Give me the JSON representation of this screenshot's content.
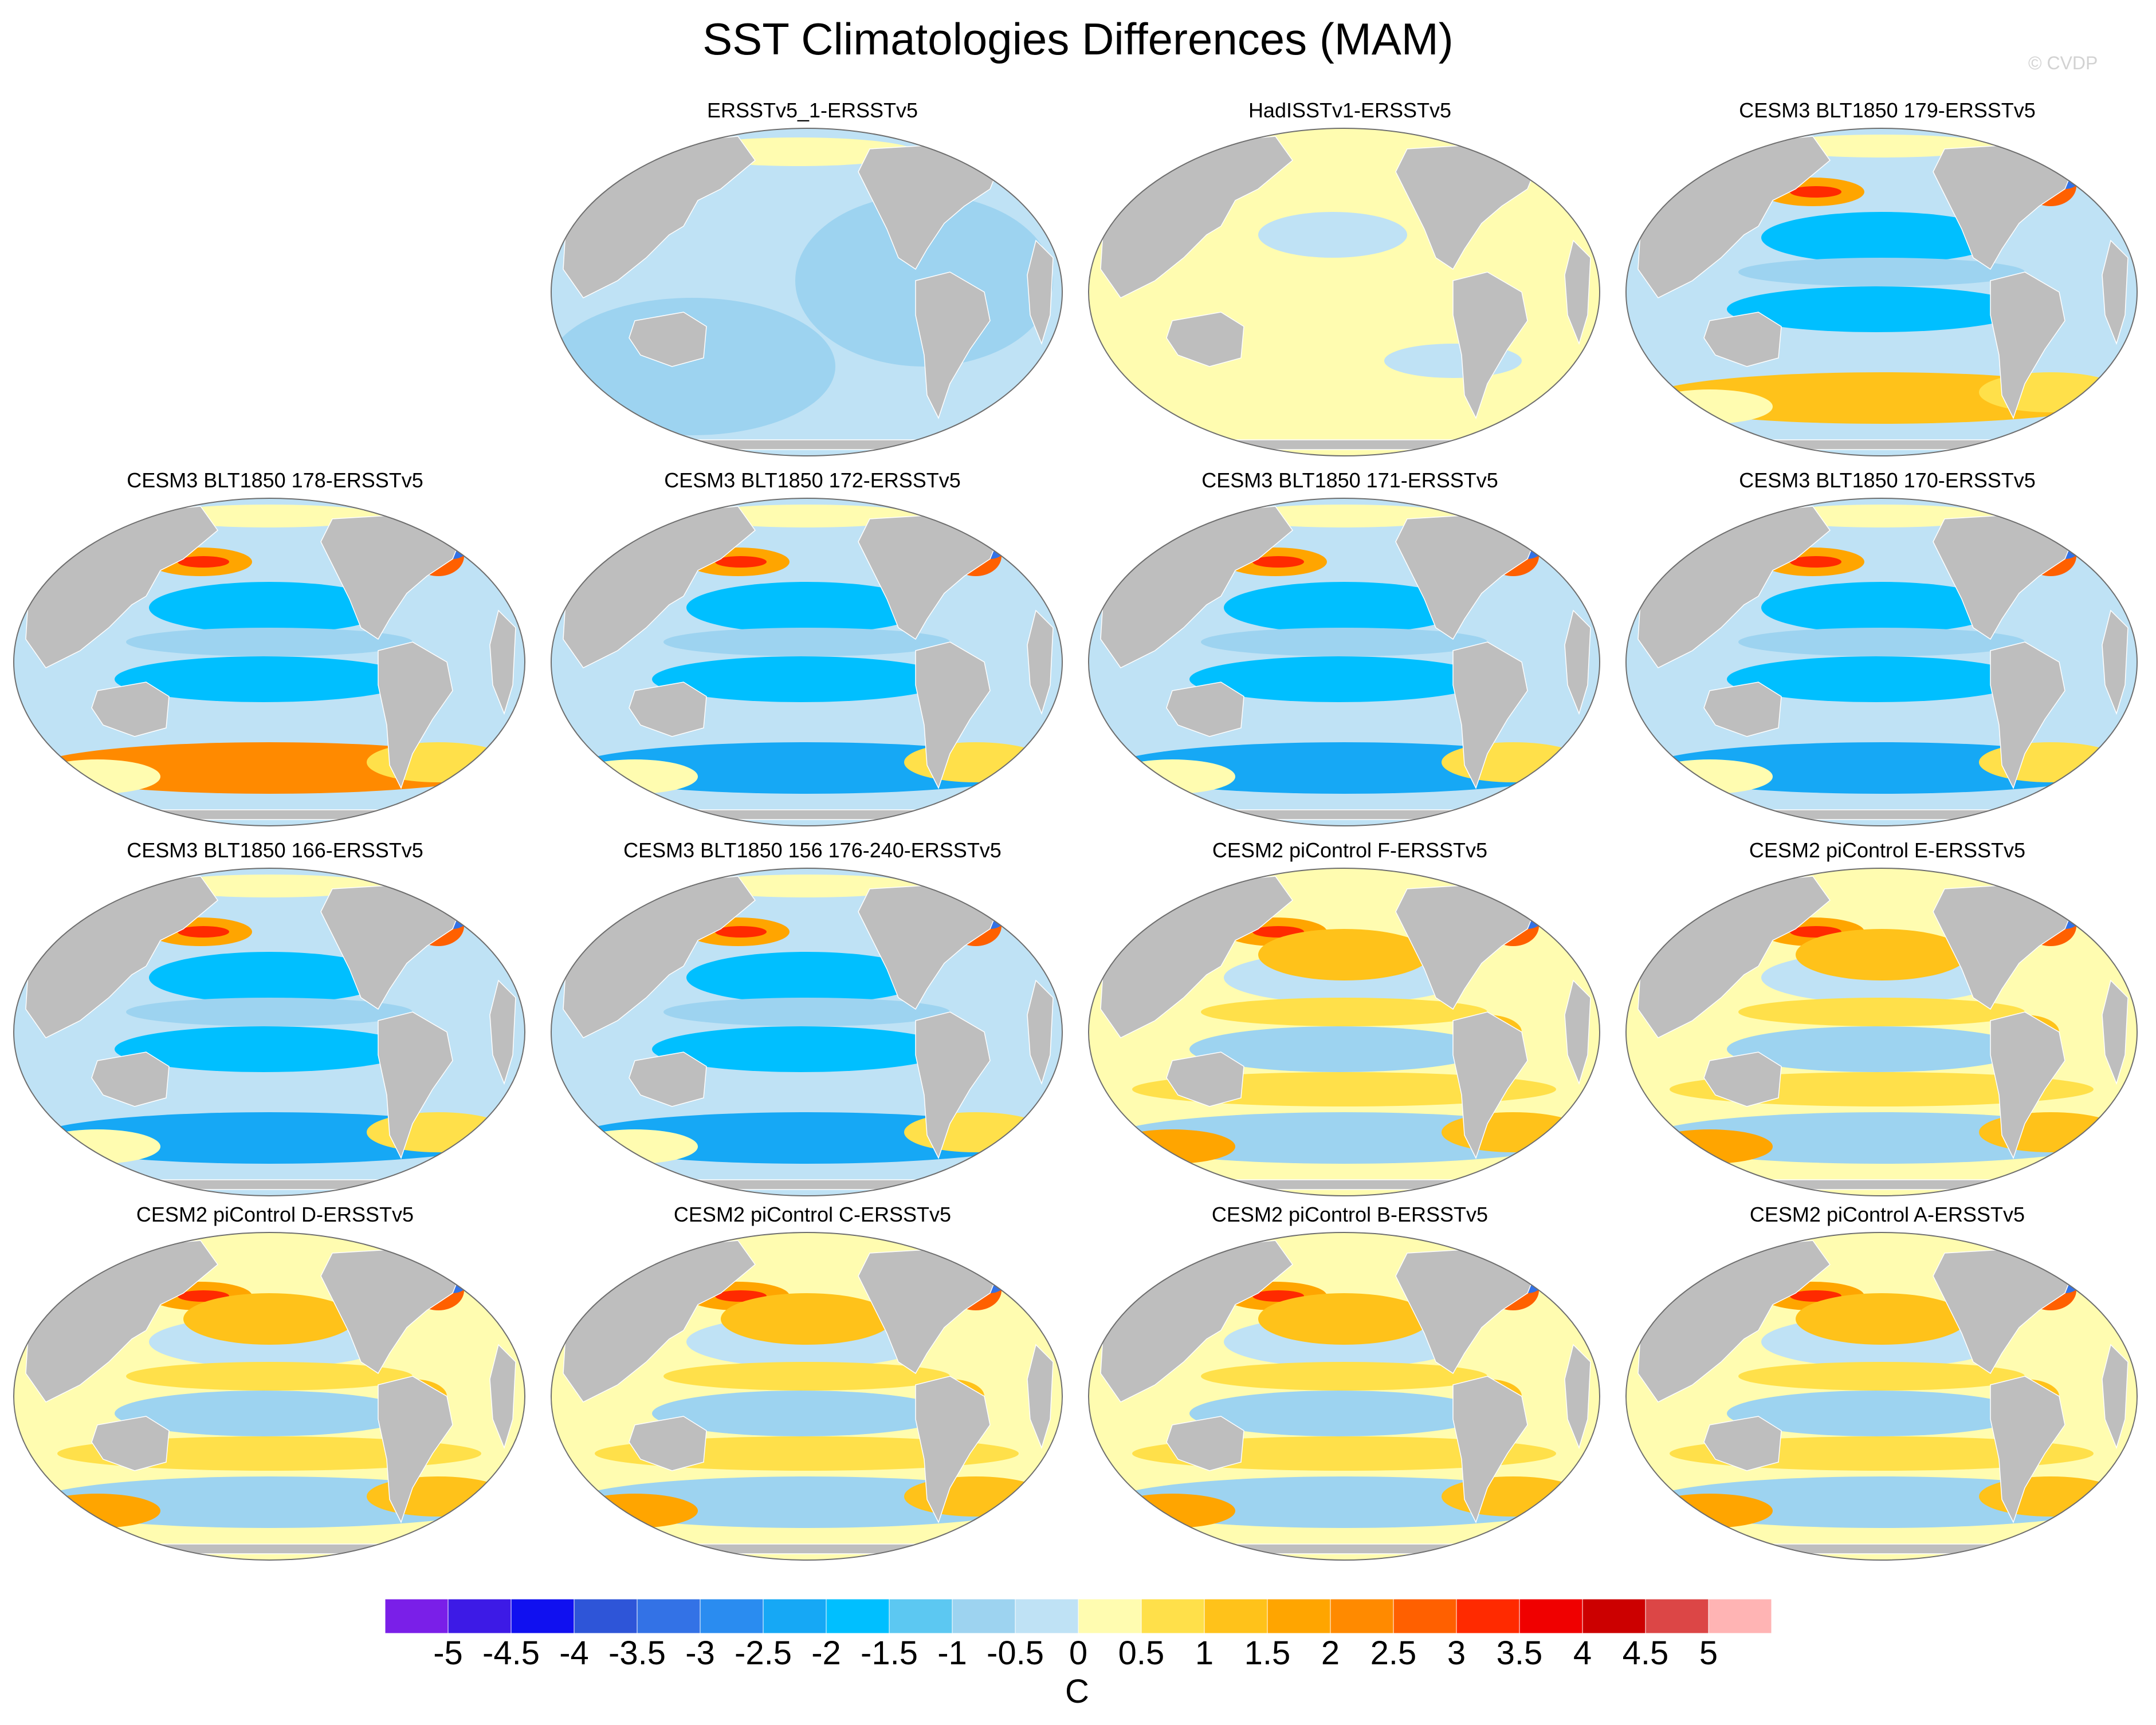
{
  "title": "SST Climatologies Differences (MAM)",
  "credit": "© CVDP",
  "colors": {
    "land": "#bebebe",
    "ocean_outline": "#6e6e6e",
    "scale": [
      "#7a1fe8",
      "#3d1ae6",
      "#1010f0",
      "#2e55d8",
      "#3372e6",
      "#2a8cf0",
      "#16a8f5",
      "#00bfff",
      "#5cc8f2",
      "#9dd3f0",
      "#bfe2f5",
      "#fffcb0",
      "#ffe04a",
      "#ffc21a",
      "#ffa500",
      "#ff8a00",
      "#ff6000",
      "#ff2a00",
      "#f00000",
      "#cc0000",
      "#dc4646",
      "#ffb4b4"
    ]
  },
  "colorbar": {
    "labels": [
      "-5",
      "-4.5",
      "-4",
      "-3.5",
      "-3",
      "-2.5",
      "-2",
      "-1.5",
      "-1",
      "-0.5",
      "0",
      "0.5",
      "1",
      "1.5",
      "2",
      "2.5",
      "3",
      "3.5",
      "4",
      "4.5",
      "5"
    ],
    "units": "C"
  },
  "panels": [
    {
      "label": "ERSSTv5_1-ERSSTv5",
      "pattern": "uniform-cool"
    },
    {
      "label": "HadISSTv1-ERSSTv5",
      "pattern": "uniform-warm"
    },
    {
      "label": "CESM3 BLT1850 179-ERSSTv5",
      "pattern": "blt-mixed"
    },
    {
      "label": "CESM3 BLT1850 178-ERSSTv5",
      "pattern": "blt-warm-south"
    },
    {
      "label": "CESM3 BLT1850 172-ERSSTv5",
      "pattern": "blt-cool"
    },
    {
      "label": "CESM3 BLT1850 171-ERSSTv5",
      "pattern": "blt-cool"
    },
    {
      "label": "CESM3 BLT1850 170-ERSSTv5",
      "pattern": "blt-cool"
    },
    {
      "label": "CESM3 BLT1850 166-ERSSTv5",
      "pattern": "blt-cool"
    },
    {
      "label": "CESM3 BLT1850 156 176-240-ERSSTv5",
      "pattern": "blt-cool"
    },
    {
      "label": "CESM2 piControl F-ERSSTv5",
      "pattern": "cesm2-warm"
    },
    {
      "label": "CESM2 piControl E-ERSSTv5",
      "pattern": "cesm2-warm"
    },
    {
      "label": "CESM2 piControl D-ERSSTv5",
      "pattern": "cesm2-warm"
    },
    {
      "label": "CESM2 piControl C-ERSSTv5",
      "pattern": "cesm2-warm"
    },
    {
      "label": "CESM2 piControl B-ERSSTv5",
      "pattern": "cesm2-warm"
    },
    {
      "label": "CESM2 piControl A-ERSSTv5",
      "pattern": "cesm2-warm"
    }
  ]
}
